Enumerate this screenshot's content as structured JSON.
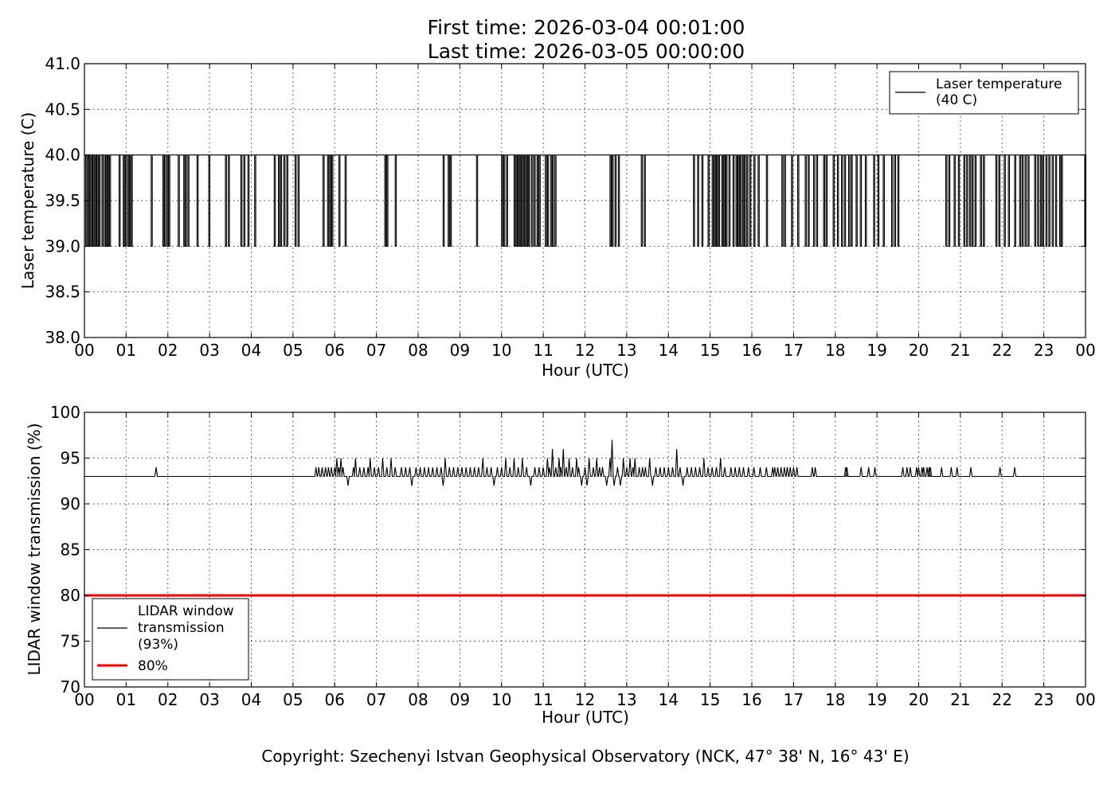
{
  "header": {
    "line1": "First time: 2026-03-04 00:01:00",
    "line2": "Last time: 2026-03-05 00:00:00"
  },
  "copyright": "Copyright: Szechenyi Istvan Geophysical Observatory (NCK, 47° 38' N, 16° 43' E)",
  "colors": {
    "series_line": "#000000",
    "threshold_line": "#ff0000",
    "grid": "#000000"
  },
  "chart_data": [
    {
      "type": "line",
      "xlabel": "Hour (UTC)",
      "ylabel": "Laser temperature (C)",
      "xlim": [
        0,
        24
      ],
      "ylim": [
        38.0,
        41.0
      ],
      "xticks": [
        0,
        1,
        2,
        3,
        4,
        5,
        6,
        7,
        8,
        9,
        10,
        11,
        12,
        13,
        14,
        15,
        16,
        17,
        18,
        19,
        20,
        21,
        22,
        23,
        24
      ],
      "xtick_labels": [
        "00",
        "01",
        "02",
        "03",
        "04",
        "05",
        "06",
        "07",
        "08",
        "09",
        "10",
        "11",
        "12",
        "13",
        "14",
        "15",
        "16",
        "17",
        "18",
        "19",
        "20",
        "21",
        "22",
        "23",
        "00"
      ],
      "yticks": [
        38.0,
        38.5,
        39.0,
        39.5,
        40.0,
        40.5,
        41.0
      ],
      "ytick_labels": [
        "38.0",
        "38.5",
        "39.0",
        "39.5",
        "40.0",
        "40.5",
        "41.0"
      ],
      "grid": true,
      "legend_position": "top-right",
      "baseline": 40.0,
      "series": [
        {
          "name": "Laser temperature\n(40 C)",
          "legend_lines": [
            "Laser temperature",
            "(40 C)"
          ],
          "color": "#000000",
          "description": "Mostly 40.0 with frequent drops to 39.0",
          "drop_value": 39.0,
          "drop_hours": [
            0.03,
            0.06,
            0.1,
            0.15,
            0.2,
            0.25,
            0.3,
            0.35,
            0.42,
            0.48,
            0.52,
            0.56,
            0.6,
            0.83,
            0.93,
            0.98,
            1.04,
            1.08,
            1.12,
            1.6,
            1.88,
            1.92,
            1.98,
            2.02,
            2.25,
            2.38,
            2.42,
            2.48,
            2.7,
            2.98,
            3.38,
            3.45,
            3.75,
            3.82,
            3.92,
            4.08,
            4.55,
            4.65,
            4.7,
            4.78,
            4.85,
            5.05,
            5.12,
            5.72,
            5.83,
            5.88,
            5.93,
            6.1,
            6.25,
            7.2,
            7.25,
            7.45,
            8.6,
            8.72,
            8.77,
            9.4,
            10.0,
            10.05,
            10.12,
            10.3,
            10.35,
            10.4,
            10.45,
            10.5,
            10.55,
            10.6,
            10.65,
            10.72,
            10.78,
            10.85,
            10.9,
            11.05,
            11.1,
            11.18,
            11.22,
            11.28,
            12.6,
            12.65,
            12.72,
            12.8,
            13.35,
            13.42,
            14.6,
            14.7,
            14.8,
            14.95,
            15.05,
            15.1,
            15.15,
            15.2,
            15.28,
            15.33,
            15.38,
            15.45,
            15.55,
            15.62,
            15.67,
            15.72,
            15.78,
            15.82,
            15.88,
            15.95,
            16.05,
            16.15,
            16.35,
            16.72,
            16.78,
            16.95,
            17.1,
            17.28,
            17.35,
            17.48,
            17.55,
            17.72,
            17.78,
            17.95,
            18.05,
            18.15,
            18.22,
            18.32,
            18.38,
            18.5,
            18.6,
            18.72,
            18.92,
            19.02,
            19.15,
            19.35,
            19.42,
            19.5,
            20.65,
            20.72,
            20.85,
            20.95,
            21.08,
            21.15,
            21.22,
            21.28,
            21.35,
            21.48,
            21.55,
            21.85,
            21.92,
            22.05,
            22.15,
            22.3,
            22.42,
            22.48,
            22.55,
            22.62,
            22.78,
            22.85,
            22.92,
            22.97,
            23.05,
            23.12,
            23.2,
            23.28,
            23.38,
            23.42,
            23.98
          ]
        }
      ]
    },
    {
      "type": "line",
      "xlabel": "Hour (UTC)",
      "ylabel": "LIDAR window transmission (%)",
      "xlim": [
        0,
        24
      ],
      "ylim": [
        70,
        100
      ],
      "xticks": [
        0,
        1,
        2,
        3,
        4,
        5,
        6,
        7,
        8,
        9,
        10,
        11,
        12,
        13,
        14,
        15,
        16,
        17,
        18,
        19,
        20,
        21,
        22,
        23,
        24
      ],
      "xtick_labels": [
        "00",
        "01",
        "02",
        "03",
        "04",
        "05",
        "06",
        "07",
        "08",
        "09",
        "10",
        "11",
        "12",
        "13",
        "14",
        "15",
        "16",
        "17",
        "18",
        "19",
        "20",
        "21",
        "22",
        "23",
        "00"
      ],
      "yticks": [
        70,
        75,
        80,
        85,
        90,
        95,
        100
      ],
      "ytick_labels": [
        "70",
        "75",
        "80",
        "85",
        "90",
        "95",
        "100"
      ],
      "grid": true,
      "legend_position": "bottom-left",
      "baseline": 93,
      "series": [
        {
          "name": "LIDAR window\ntransmission\n(93%)",
          "legend_lines": [
            "LIDAR window",
            "transmission",
            "(93%)"
          ],
          "color": "#000000",
          "description": "Mostly 93 with spikes between 92 and 97",
          "spikes": [
            [
              1.72,
              94
            ],
            [
              5.55,
              94
            ],
            [
              5.62,
              94
            ],
            [
              5.7,
              94
            ],
            [
              5.78,
              94
            ],
            [
              5.85,
              94
            ],
            [
              5.92,
              94
            ],
            [
              6.0,
              94
            ],
            [
              6.05,
              95
            ],
            [
              6.1,
              94
            ],
            [
              6.15,
              95
            ],
            [
              6.2,
              94
            ],
            [
              6.32,
              92
            ],
            [
              6.45,
              94
            ],
            [
              6.5,
              95
            ],
            [
              6.6,
              94
            ],
            [
              6.7,
              94
            ],
            [
              6.8,
              94
            ],
            [
              6.85,
              95
            ],
            [
              6.95,
              94
            ],
            [
              7.05,
              94
            ],
            [
              7.15,
              95
            ],
            [
              7.25,
              94
            ],
            [
              7.35,
              95
            ],
            [
              7.45,
              94
            ],
            [
              7.6,
              94
            ],
            [
              7.7,
              94
            ],
            [
              7.8,
              94
            ],
            [
              7.85,
              92
            ],
            [
              7.95,
              94
            ],
            [
              8.05,
              94
            ],
            [
              8.15,
              94
            ],
            [
              8.25,
              94
            ],
            [
              8.35,
              94
            ],
            [
              8.45,
              94
            ],
            [
              8.55,
              94
            ],
            [
              8.6,
              92
            ],
            [
              8.65,
              95
            ],
            [
              8.75,
              94
            ],
            [
              8.85,
              94
            ],
            [
              8.95,
              94
            ],
            [
              9.05,
              94
            ],
            [
              9.15,
              94
            ],
            [
              9.25,
              94
            ],
            [
              9.35,
              94
            ],
            [
              9.45,
              94
            ],
            [
              9.55,
              95
            ],
            [
              9.65,
              94
            ],
            [
              9.75,
              94
            ],
            [
              9.82,
              92
            ],
            [
              9.9,
              94
            ],
            [
              10.0,
              94
            ],
            [
              10.1,
              95
            ],
            [
              10.2,
              94
            ],
            [
              10.3,
              95
            ],
            [
              10.4,
              94
            ],
            [
              10.5,
              95
            ],
            [
              10.6,
              94
            ],
            [
              10.7,
              92
            ],
            [
              10.8,
              94
            ],
            [
              10.9,
              94
            ],
            [
              11.0,
              94
            ],
            [
              11.1,
              95
            ],
            [
              11.15,
              94
            ],
            [
              11.22,
              96
            ],
            [
              11.3,
              94
            ],
            [
              11.38,
              95
            ],
            [
              11.42,
              94
            ],
            [
              11.48,
              96
            ],
            [
              11.55,
              94
            ],
            [
              11.62,
              95
            ],
            [
              11.7,
              94
            ],
            [
              11.8,
              95
            ],
            [
              11.85,
              94
            ],
            [
              11.92,
              92
            ],
            [
              12.0,
              94
            ],
            [
              12.05,
              92
            ],
            [
              12.1,
              95
            ],
            [
              12.2,
              94
            ],
            [
              12.28,
              95
            ],
            [
              12.35,
              94
            ],
            [
              12.42,
              94
            ],
            [
              12.52,
              92
            ],
            [
              12.6,
              95
            ],
            [
              12.65,
              97
            ],
            [
              12.7,
              92
            ],
            [
              12.78,
              94
            ],
            [
              12.85,
              92
            ],
            [
              12.92,
              95
            ],
            [
              13.0,
              94
            ],
            [
              13.08,
              95
            ],
            [
              13.15,
              94
            ],
            [
              13.2,
              95
            ],
            [
              13.3,
              94
            ],
            [
              13.38,
              94
            ],
            [
              13.45,
              94
            ],
            [
              13.55,
              95
            ],
            [
              13.62,
              92
            ],
            [
              13.7,
              94
            ],
            [
              13.8,
              94
            ],
            [
              13.9,
              94
            ],
            [
              14.0,
              94
            ],
            [
              14.1,
              94
            ],
            [
              14.2,
              96
            ],
            [
              14.28,
              94
            ],
            [
              14.35,
              92
            ],
            [
              14.45,
              94
            ],
            [
              14.55,
              94
            ],
            [
              14.65,
              94
            ],
            [
              14.75,
              94
            ],
            [
              14.85,
              95
            ],
            [
              14.95,
              94
            ],
            [
              15.05,
              94
            ],
            [
              15.15,
              94
            ],
            [
              15.25,
              95
            ],
            [
              15.35,
              94
            ],
            [
              15.5,
              94
            ],
            [
              15.6,
              94
            ],
            [
              15.7,
              94
            ],
            [
              15.8,
              94
            ],
            [
              15.92,
              94
            ],
            [
              16.05,
              94
            ],
            [
              16.2,
              94
            ],
            [
              16.35,
              94
            ],
            [
              16.5,
              94
            ],
            [
              16.55,
              94
            ],
            [
              16.62,
              94
            ],
            [
              16.7,
              94
            ],
            [
              16.78,
              94
            ],
            [
              16.85,
              94
            ],
            [
              16.92,
              94
            ],
            [
              17.0,
              94
            ],
            [
              17.08,
              94
            ],
            [
              17.45,
              94
            ],
            [
              17.52,
              94
            ],
            [
              18.25,
              94
            ],
            [
              18.28,
              94
            ],
            [
              18.62,
              94
            ],
            [
              18.8,
              94
            ],
            [
              18.95,
              94
            ],
            [
              19.62,
              94
            ],
            [
              19.72,
              94
            ],
            [
              19.8,
              94
            ],
            [
              19.95,
              94
            ],
            [
              20.0,
              94
            ],
            [
              20.08,
              94
            ],
            [
              20.12,
              94
            ],
            [
              20.2,
              94
            ],
            [
              20.25,
              94
            ],
            [
              20.28,
              94
            ],
            [
              20.55,
              94
            ],
            [
              20.78,
              94
            ],
            [
              20.92,
              94
            ],
            [
              21.25,
              94
            ],
            [
              21.95,
              94
            ],
            [
              22.3,
              94
            ]
          ]
        },
        {
          "name": "80%",
          "legend_lines": [
            "80%"
          ],
          "color": "#ff0000",
          "value": 80
        }
      ]
    }
  ]
}
